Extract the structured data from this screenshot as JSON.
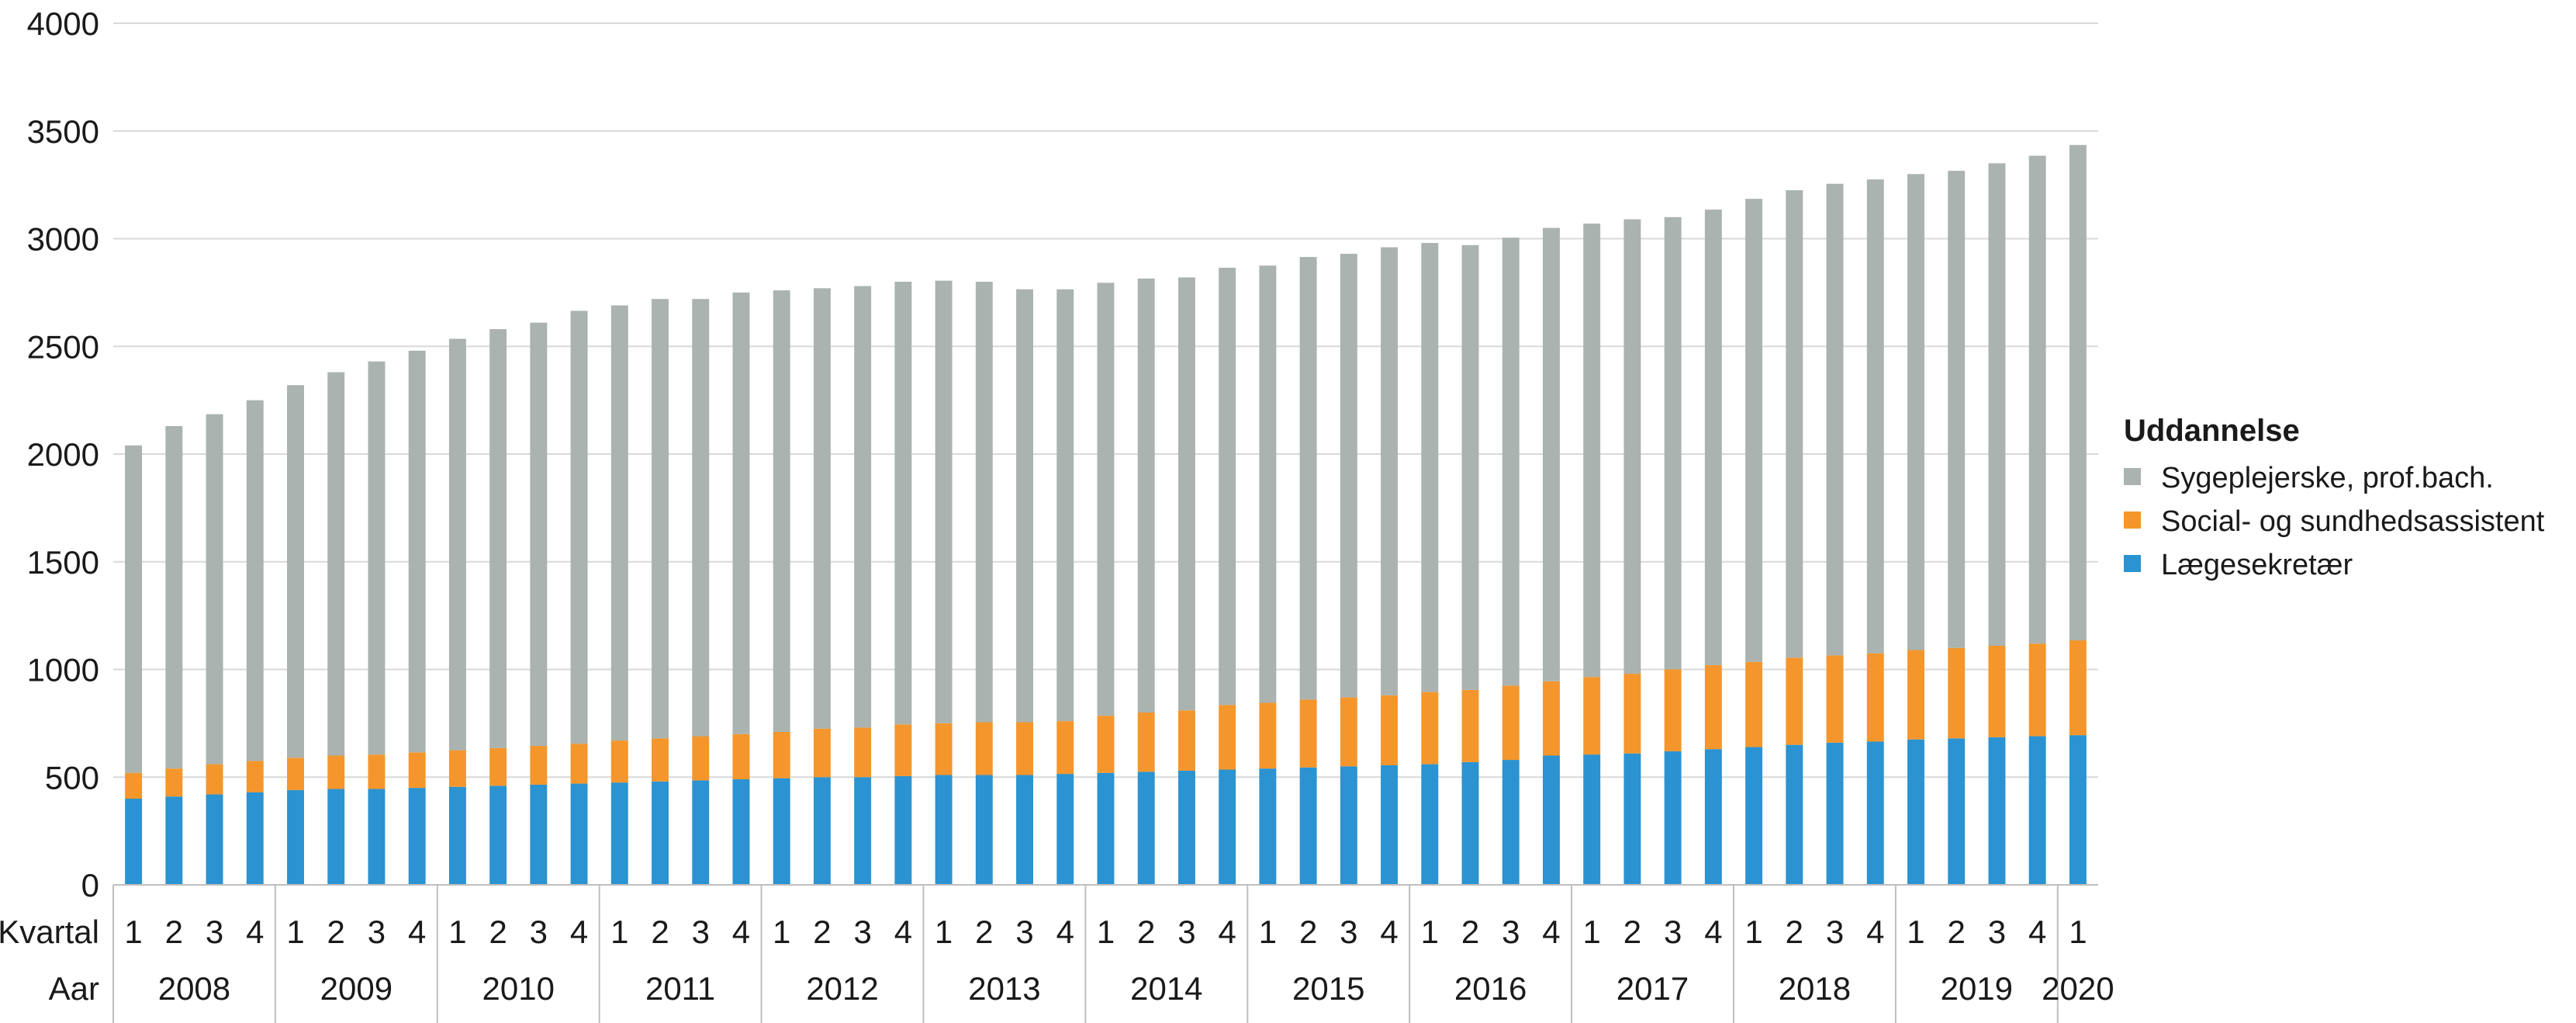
{
  "chart_data": {
    "type": "bar",
    "stacked": true,
    "title": "",
    "xlabel": "",
    "ylabel": "",
    "ylim": [
      0,
      4000
    ],
    "yticks": [
      0,
      500,
      1000,
      1500,
      2000,
      2500,
      3000,
      3500,
      4000
    ],
    "grid": "horizontal",
    "axis_row_labels": {
      "quarter": "Kvartal",
      "year": "Aar"
    },
    "years": [
      "2008",
      "2009",
      "2010",
      "2011",
      "2012",
      "2013",
      "2014",
      "2015",
      "2016",
      "2017",
      "2018",
      "2019",
      "2020"
    ],
    "quarters_per_year": [
      4,
      4,
      4,
      4,
      4,
      4,
      4,
      4,
      4,
      4,
      4,
      4,
      1
    ],
    "categories": [
      "1",
      "2",
      "3",
      "4",
      "1",
      "2",
      "3",
      "4",
      "1",
      "2",
      "3",
      "4",
      "1",
      "2",
      "3",
      "4",
      "1",
      "2",
      "3",
      "4",
      "1",
      "2",
      "3",
      "4",
      "1",
      "2",
      "3",
      "4",
      "1",
      "2",
      "3",
      "4",
      "1",
      "2",
      "3",
      "4",
      "1",
      "2",
      "3",
      "4",
      "1",
      "2",
      "3",
      "4",
      "1",
      "2",
      "3",
      "4",
      "1"
    ],
    "legend": {
      "title": "Uddannelse",
      "placement": "right"
    },
    "colors": {
      "Sygeplejerske, prof.bach.": "#aab3b0",
      "Social- og sundhedsassistent": "#f4962c",
      "Lægesekretær": "#2b93d1",
      "grid": "#d9d9d9",
      "axis": "#bfbfbf"
    },
    "series": [
      {
        "name": "Lægesekretær",
        "values": [
          400,
          410,
          420,
          430,
          440,
          445,
          445,
          450,
          455,
          460,
          465,
          470,
          475,
          480,
          485,
          490,
          495,
          500,
          500,
          505,
          510,
          510,
          510,
          515,
          520,
          525,
          530,
          535,
          540,
          545,
          550,
          555,
          560,
          570,
          580,
          600,
          605,
          610,
          620,
          630,
          640,
          650,
          660,
          665,
          675,
          680,
          685,
          690,
          695
        ]
      },
      {
        "name": "Social- og sundhedsassistent",
        "values": [
          120,
          130,
          140,
          145,
          150,
          155,
          160,
          165,
          170,
          175,
          180,
          185,
          195,
          200,
          205,
          210,
          215,
          225,
          230,
          240,
          240,
          245,
          245,
          245,
          265,
          275,
          280,
          300,
          305,
          315,
          320,
          325,
          335,
          335,
          345,
          345,
          360,
          370,
          380,
          390,
          395,
          405,
          405,
          410,
          415,
          420,
          425,
          430,
          440
        ]
      },
      {
        "name": "Sygeplejerske, prof.bach.",
        "values": [
          1520,
          1590,
          1625,
          1675,
          1730,
          1780,
          1825,
          1865,
          1910,
          1945,
          1965,
          2010,
          2020,
          2040,
          2030,
          2050,
          2050,
          2045,
          2050,
          2055,
          2055,
          2045,
          2010,
          2005,
          2010,
          2015,
          2010,
          2030,
          2030,
          2055,
          2060,
          2080,
          2085,
          2065,
          2080,
          2105,
          2105,
          2110,
          2100,
          2115,
          2150,
          2170,
          2190,
          2200,
          2210,
          2215,
          2240,
          2265,
          2300
        ]
      }
    ]
  }
}
